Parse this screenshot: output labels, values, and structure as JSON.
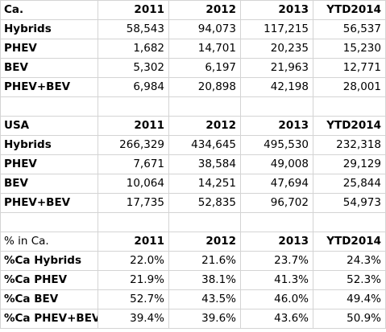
{
  "sections": [
    {
      "header": [
        "Ca.",
        "2011",
        "2012",
        "2013",
        "YTD2014"
      ],
      "rows": [
        [
          "Hybrids",
          "58,543",
          "94,073",
          "117,215",
          "56,537"
        ],
        [
          "PHEV",
          "1,682",
          "14,701",
          "20,235",
          "15,230"
        ],
        [
          "BEV",
          "5,302",
          "6,197",
          "21,963",
          "12,771"
        ],
        [
          "PHEV+BEV",
          "6,984",
          "20,898",
          "42,198",
          "28,001"
        ]
      ]
    },
    {
      "header": [
        "USA",
        "2011",
        "2012",
        "2013",
        "YTD2014"
      ],
      "rows": [
        [
          "Hybrids",
          "266,329",
          "434,645",
          "495,530",
          "232,318"
        ],
        [
          "PHEV",
          "7,671",
          "38,584",
          "49,008",
          "29,129"
        ],
        [
          "BEV",
          "10,064",
          "14,251",
          "47,694",
          "25,844"
        ],
        [
          "PHEV+BEV",
          "17,735",
          "52,835",
          "96,702",
          "54,973"
        ]
      ]
    },
    {
      "header": [
        "% in Ca.",
        "2011",
        "2012",
        "2013",
        "YTD2014"
      ],
      "rows": [
        [
          "%Ca Hybrids",
          "22.0%",
          "21.6%",
          "23.7%",
          "24.3%"
        ],
        [
          "%Ca PHEV",
          "21.9%",
          "38.1%",
          "41.3%",
          "52.3%"
        ],
        [
          "%Ca BEV",
          "52.7%",
          "43.5%",
          "46.0%",
          "49.4%"
        ],
        [
          "%Ca PHEV+BEV",
          "39.4%",
          "39.6%",
          "43.6%",
          "50.9%"
        ]
      ]
    }
  ]
}
